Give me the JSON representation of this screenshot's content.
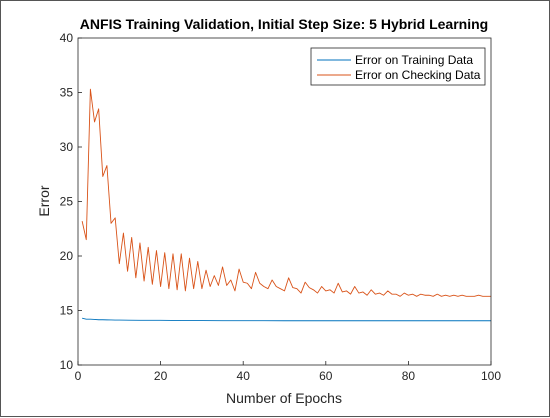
{
  "chart_data": {
    "type": "line",
    "title": "ANFIS Training Validation, Initial Step Size: 5 Hybrid Learning",
    "xlabel": "Number of Epochs",
    "ylabel": "Error",
    "xlim": [
      0,
      100
    ],
    "ylim": [
      10,
      40
    ],
    "xticks": [
      0,
      20,
      40,
      60,
      80,
      100
    ],
    "yticks": [
      10,
      15,
      20,
      25,
      30,
      35,
      40
    ],
    "grid": false,
    "legend_position": "top-right",
    "series": [
      {
        "name": "Error on Training Data",
        "color": "#0072BD",
        "x": [
          1,
          2,
          3,
          4,
          5,
          6,
          7,
          8,
          9,
          10,
          15,
          20,
          25,
          30,
          35,
          40,
          45,
          50,
          55,
          60,
          65,
          70,
          75,
          80,
          85,
          90,
          95,
          100
        ],
        "y": [
          14.3,
          14.2,
          14.2,
          14.18,
          14.15,
          14.15,
          14.14,
          14.13,
          14.12,
          14.12,
          14.1,
          14.1,
          14.08,
          14.08,
          14.07,
          14.07,
          14.07,
          14.06,
          14.06,
          14.06,
          14.06,
          14.06,
          14.06,
          14.06,
          14.06,
          14.06,
          14.06,
          14.06
        ]
      },
      {
        "name": "Error on Checking Data",
        "color": "#D95319",
        "x": [
          1,
          2,
          3,
          4,
          5,
          6,
          7,
          8,
          9,
          10,
          11,
          12,
          13,
          14,
          15,
          16,
          17,
          18,
          19,
          20,
          21,
          22,
          23,
          24,
          25,
          26,
          27,
          28,
          29,
          30,
          31,
          32,
          33,
          34,
          35,
          36,
          37,
          38,
          39,
          40,
          41,
          42,
          43,
          44,
          45,
          46,
          47,
          48,
          49,
          50,
          51,
          52,
          53,
          54,
          55,
          56,
          57,
          58,
          59,
          60,
          61,
          62,
          63,
          64,
          65,
          66,
          67,
          68,
          69,
          70,
          71,
          72,
          73,
          74,
          75,
          76,
          77,
          78,
          79,
          80,
          81,
          82,
          83,
          84,
          85,
          86,
          87,
          88,
          89,
          90,
          91,
          92,
          93,
          94,
          95,
          96,
          97,
          98,
          99,
          100
        ],
        "y": [
          23.2,
          21.5,
          35.3,
          32.3,
          33.5,
          27.3,
          28.3,
          23.0,
          23.5,
          19.3,
          22.1,
          18.6,
          21.7,
          18.0,
          21.2,
          17.7,
          20.8,
          17.4,
          20.5,
          17.2,
          20.3,
          17.0,
          20.2,
          16.9,
          20.2,
          16.8,
          19.8,
          17.0,
          19.5,
          17.0,
          18.7,
          17.2,
          18.2,
          17.3,
          19.0,
          17.3,
          17.8,
          16.8,
          18.8,
          17.6,
          17.5,
          17.0,
          18.5,
          17.5,
          17.2,
          17.0,
          17.8,
          17.2,
          17.0,
          16.8,
          18.0,
          17.1,
          17.0,
          16.6,
          17.6,
          17.1,
          16.9,
          16.6,
          17.2,
          16.8,
          16.9,
          16.6,
          17.5,
          16.7,
          16.8,
          16.5,
          17.2,
          16.6,
          16.7,
          16.4,
          16.9,
          16.5,
          16.6,
          16.4,
          16.8,
          16.5,
          16.5,
          16.3,
          16.6,
          16.4,
          16.5,
          16.3,
          16.5,
          16.4,
          16.4,
          16.3,
          16.5,
          16.3,
          16.4,
          16.3,
          16.4,
          16.3,
          16.4,
          16.3,
          16.3,
          16.3,
          16.4,
          16.3,
          16.3,
          16.3
        ]
      }
    ]
  }
}
